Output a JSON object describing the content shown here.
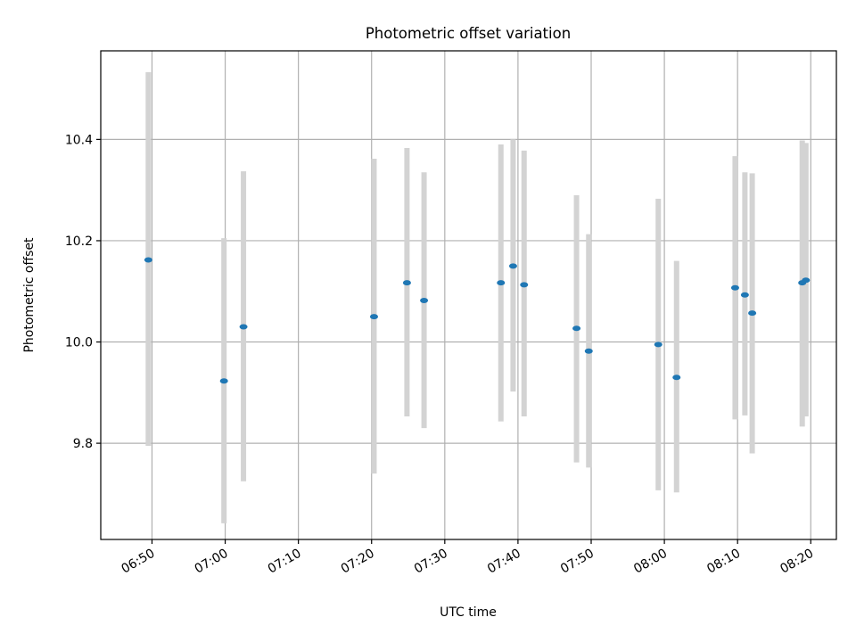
{
  "chart_data": {
    "type": "scatter",
    "title": "Photometric offset variation",
    "xlabel": "UTC time",
    "ylabel": "Photometric offset",
    "xlim": [
      "06:43:00",
      "08:23:30"
    ],
    "ylim": [
      9.61,
      10.575
    ],
    "x_ticks": [
      "06:50",
      "07:00",
      "07:10",
      "07:20",
      "07:30",
      "07:40",
      "07:50",
      "08:00",
      "08:10",
      "08:20"
    ],
    "y_ticks": [
      9.8,
      10.0,
      10.2,
      10.4
    ],
    "y_tick_labels": [
      "9.8",
      "10.0",
      "10.2",
      "10.4"
    ],
    "grid": true,
    "marker_color": "#1f77b4",
    "errorbar_color": "#d3d3d3",
    "points": [
      {
        "t": "06:49:30",
        "y": 10.162,
        "ylow": 9.795,
        "yhigh": 10.533
      },
      {
        "t": "06:59:50",
        "y": 9.923,
        "ylow": 9.642,
        "yhigh": 10.205
      },
      {
        "t": "07:02:30",
        "y": 10.03,
        "ylow": 9.725,
        "yhigh": 10.337
      },
      {
        "t": "07:20:20",
        "y": 10.05,
        "ylow": 9.74,
        "yhigh": 10.362
      },
      {
        "t": "07:24:50",
        "y": 10.117,
        "ylow": 9.853,
        "yhigh": 10.383
      },
      {
        "t": "07:27:10",
        "y": 10.082,
        "ylow": 9.83,
        "yhigh": 10.335
      },
      {
        "t": "07:37:40",
        "y": 10.117,
        "ylow": 9.843,
        "yhigh": 10.39
      },
      {
        "t": "07:39:20",
        "y": 10.15,
        "ylow": 9.902,
        "yhigh": 10.4
      },
      {
        "t": "07:40:50",
        "y": 10.113,
        "ylow": 9.853,
        "yhigh": 10.378
      },
      {
        "t": "07:48:00",
        "y": 10.027,
        "ylow": 9.762,
        "yhigh": 10.29
      },
      {
        "t": "07:49:40",
        "y": 9.982,
        "ylow": 9.752,
        "yhigh": 10.213
      },
      {
        "t": "07:59:10",
        "y": 9.995,
        "ylow": 9.707,
        "yhigh": 10.283
      },
      {
        "t": "08:01:40",
        "y": 9.93,
        "ylow": 9.703,
        "yhigh": 10.16
      },
      {
        "t": "08:09:40",
        "y": 10.107,
        "ylow": 9.847,
        "yhigh": 10.367
      },
      {
        "t": "08:11:00",
        "y": 10.093,
        "ylow": 9.855,
        "yhigh": 10.335
      },
      {
        "t": "08:12:00",
        "y": 10.057,
        "ylow": 9.78,
        "yhigh": 10.333
      },
      {
        "t": "08:18:50",
        "y": 10.117,
        "ylow": 9.833,
        "yhigh": 10.398
      },
      {
        "t": "08:19:20",
        "y": 10.122,
        "ylow": 9.853,
        "yhigh": 10.393
      }
    ]
  }
}
